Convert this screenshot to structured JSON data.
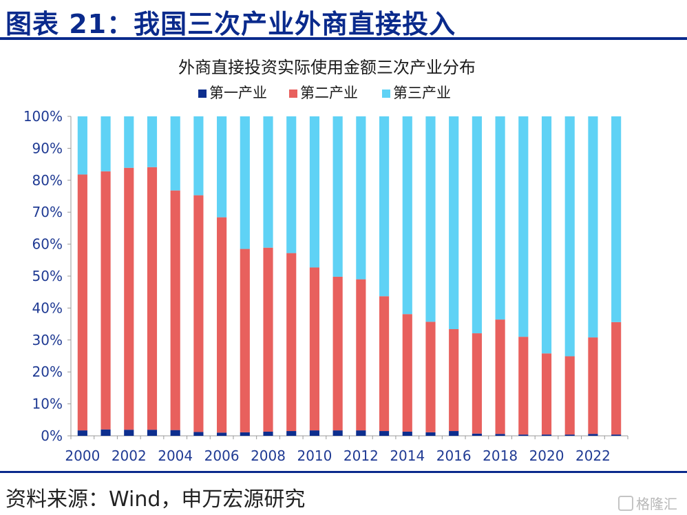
{
  "heading": "图表 21：我国三次产业外商直接投入",
  "source": "资料来源：Wind，申万宏源研究",
  "watermark": "格隆汇",
  "colors": {
    "primary": "#0d2e8e",
    "secondary": "#e8605d",
    "tertiary": "#5fd2f5",
    "brand": "#0a2a8c"
  },
  "chart_data": {
    "type": "bar",
    "stacked": true,
    "title": "外商直接投资实际使用金额三次产业分布",
    "legend_position": "top",
    "grid": false,
    "ylim": [
      0,
      100
    ],
    "yticks": [
      "0%",
      "10%",
      "20%",
      "30%",
      "40%",
      "50%",
      "60%",
      "70%",
      "80%",
      "90%",
      "100%"
    ],
    "categories": [
      "2000",
      "2001",
      "2002",
      "2003",
      "2004",
      "2005",
      "2006",
      "2007",
      "2008",
      "2009",
      "2010",
      "2011",
      "2012",
      "2013",
      "2014",
      "2015",
      "2016",
      "2017",
      "2018",
      "2019",
      "2020",
      "2021",
      "2022",
      "2023"
    ],
    "xtick_labels": [
      "2000",
      "2002",
      "2004",
      "2006",
      "2008",
      "2010",
      "2012",
      "2014",
      "2016",
      "2018",
      "2020",
      "2022"
    ],
    "series": [
      {
        "name": "第一产业",
        "color": "#0d2e8e",
        "values": [
          1.7,
          2.0,
          1.9,
          1.9,
          1.8,
          1.2,
          1.0,
          1.1,
          1.3,
          1.5,
          1.7,
          1.7,
          1.7,
          1.5,
          1.3,
          1.1,
          1.5,
          0.7,
          0.6,
          0.4,
          0.4,
          0.4,
          0.6,
          0.4
        ]
      },
      {
        "name": "第二产业",
        "color": "#e8605d",
        "values": [
          80.1,
          80.8,
          82.0,
          82.2,
          75.0,
          74.1,
          67.4,
          57.4,
          57.6,
          55.7,
          51.0,
          48.1,
          47.3,
          42.2,
          36.8,
          34.6,
          31.9,
          31.4,
          35.8,
          30.6,
          25.4,
          24.5,
          30.2,
          35.2
        ]
      },
      {
        "name": "第三产业",
        "color": "#5fd2f5",
        "values": [
          18.2,
          17.2,
          16.1,
          15.9,
          23.2,
          24.7,
          31.6,
          41.5,
          41.1,
          42.8,
          47.3,
          50.2,
          51.0,
          56.3,
          61.9,
          64.3,
          66.6,
          67.9,
          63.6,
          69.0,
          74.2,
          75.1,
          69.2,
          64.4
        ]
      }
    ]
  }
}
